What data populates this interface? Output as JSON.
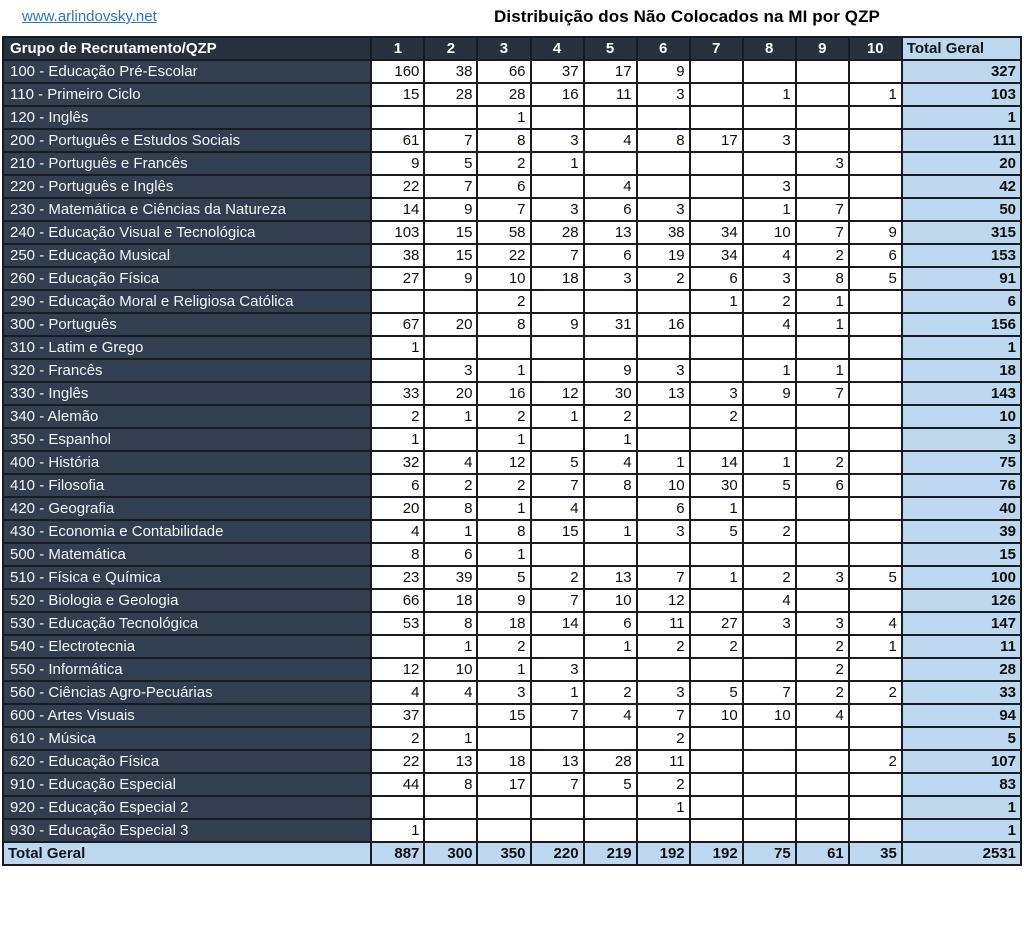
{
  "page": {
    "link_text": "www.arlindovsky.net",
    "title": "Distribuição dos Não Colocados na MI por QZP"
  },
  "colors": {
    "header_bg": "#28323f",
    "label_bg": "#333f50",
    "total_bg": "#bdd7ee",
    "link": "#2e75b6",
    "border": "#181c22"
  },
  "chart_data": {
    "type": "table",
    "title": "Distribuição dos Não Colocados na MI por QZP",
    "header": {
      "group_label": "Grupo de Recrutamento/QZP",
      "qzp_labels": [
        "1",
        "2",
        "3",
        "4",
        "5",
        "6",
        "7",
        "8",
        "9",
        "10"
      ],
      "total_label": "Total Geral"
    },
    "rows": [
      {
        "label": "100 - Educação Pré-Escolar",
        "values": [
          160,
          38,
          66,
          37,
          17,
          9,
          null,
          null,
          null,
          null
        ],
        "total": 327
      },
      {
        "label": "110 - Primeiro Ciclo",
        "values": [
          15,
          28,
          28,
          16,
          11,
          3,
          null,
          1,
          null,
          1
        ],
        "total": 103
      },
      {
        "label": "120 - Inglês",
        "values": [
          null,
          null,
          1,
          null,
          null,
          null,
          null,
          null,
          null,
          null
        ],
        "total": 1
      },
      {
        "label": "200 - Português e Estudos Sociais",
        "values": [
          61,
          7,
          8,
          3,
          4,
          8,
          17,
          3,
          null,
          null
        ],
        "total": 111
      },
      {
        "label": "210 - Português e Francês",
        "values": [
          9,
          5,
          2,
          1,
          null,
          null,
          null,
          null,
          3,
          null
        ],
        "total": 20
      },
      {
        "label": "220 - Português e Inglês",
        "values": [
          22,
          7,
          6,
          null,
          4,
          null,
          null,
          3,
          null,
          null
        ],
        "total": 42
      },
      {
        "label": "230 - Matemática e Ciências da Natureza",
        "values": [
          14,
          9,
          7,
          3,
          6,
          3,
          null,
          1,
          7,
          null
        ],
        "total": 50
      },
      {
        "label": "240 - Educação Visual e Tecnológica",
        "values": [
          103,
          15,
          58,
          28,
          13,
          38,
          34,
          10,
          7,
          9
        ],
        "total": 315
      },
      {
        "label": "250 - Educação Musical",
        "values": [
          38,
          15,
          22,
          7,
          6,
          19,
          34,
          4,
          2,
          6
        ],
        "total": 153
      },
      {
        "label": "260 - Educação Física",
        "values": [
          27,
          9,
          10,
          18,
          3,
          2,
          6,
          3,
          8,
          5
        ],
        "total": 91
      },
      {
        "label": "290 - Educação Moral e Religiosa Católica",
        "values": [
          null,
          null,
          2,
          null,
          null,
          null,
          1,
          2,
          1,
          null
        ],
        "total": 6
      },
      {
        "label": "300 - Português",
        "values": [
          67,
          20,
          8,
          9,
          31,
          16,
          null,
          4,
          1,
          null
        ],
        "total": 156
      },
      {
        "label": "310 - Latim e Grego",
        "values": [
          1,
          null,
          null,
          null,
          null,
          null,
          null,
          null,
          null,
          null
        ],
        "total": 1
      },
      {
        "label": "320 - Francês",
        "values": [
          null,
          3,
          1,
          null,
          9,
          3,
          null,
          1,
          1,
          null
        ],
        "total": 18
      },
      {
        "label": "330 - Inglês",
        "values": [
          33,
          20,
          16,
          12,
          30,
          13,
          3,
          9,
          7,
          null
        ],
        "total": 143
      },
      {
        "label": "340 - Alemão",
        "values": [
          2,
          1,
          2,
          1,
          2,
          null,
          2,
          null,
          null,
          null
        ],
        "total": 10
      },
      {
        "label": "350 - Espanhol",
        "values": [
          1,
          null,
          1,
          null,
          1,
          null,
          null,
          null,
          null,
          null
        ],
        "total": 3
      },
      {
        "label": "400 - História",
        "values": [
          32,
          4,
          12,
          5,
          4,
          1,
          14,
          1,
          2,
          null
        ],
        "total": 75
      },
      {
        "label": "410 - Filosofia",
        "values": [
          6,
          2,
          2,
          7,
          8,
          10,
          30,
          5,
          6,
          null
        ],
        "total": 76
      },
      {
        "label": "420 - Geografia",
        "values": [
          20,
          8,
          1,
          4,
          null,
          6,
          1,
          null,
          null,
          null
        ],
        "total": 40
      },
      {
        "label": "430 - Economia  e Contabilidade",
        "values": [
          4,
          1,
          8,
          15,
          1,
          3,
          5,
          2,
          null,
          null
        ],
        "total": 39
      },
      {
        "label": "500 - Matemática",
        "values": [
          8,
          6,
          1,
          null,
          null,
          null,
          null,
          null,
          null,
          null
        ],
        "total": 15
      },
      {
        "label": "510 - Física e Química",
        "values": [
          23,
          39,
          5,
          2,
          13,
          7,
          1,
          2,
          3,
          5
        ],
        "total": 100
      },
      {
        "label": "520 - Biologia e Geologia",
        "values": [
          66,
          18,
          9,
          7,
          10,
          12,
          null,
          4,
          null,
          null
        ],
        "total": 126
      },
      {
        "label": "530 - Educação Tecnológica",
        "values": [
          53,
          8,
          18,
          14,
          6,
          11,
          27,
          3,
          3,
          4
        ],
        "total": 147
      },
      {
        "label": "540 - Electrotecnia",
        "values": [
          null,
          1,
          2,
          null,
          1,
          2,
          2,
          null,
          2,
          1
        ],
        "total": 11
      },
      {
        "label": "550 - Informática",
        "values": [
          12,
          10,
          1,
          3,
          null,
          null,
          null,
          null,
          2,
          null
        ],
        "total": 28
      },
      {
        "label": "560 - Ciências Agro-Pecuárias",
        "values": [
          4,
          4,
          3,
          1,
          2,
          3,
          5,
          7,
          2,
          2
        ],
        "total": 33
      },
      {
        "label": "600 - Artes Visuais",
        "values": [
          37,
          null,
          15,
          7,
          4,
          7,
          10,
          10,
          4,
          null
        ],
        "total": 94
      },
      {
        "label": "610 - Música",
        "values": [
          2,
          1,
          null,
          null,
          null,
          2,
          null,
          null,
          null,
          null
        ],
        "total": 5
      },
      {
        "label": "620 - Educação Física",
        "values": [
          22,
          13,
          18,
          13,
          28,
          11,
          null,
          null,
          null,
          2
        ],
        "total": 107
      },
      {
        "label": "910 - Educação Especial",
        "values": [
          44,
          8,
          17,
          7,
          5,
          2,
          null,
          null,
          null,
          null
        ],
        "total": 83
      },
      {
        "label": "920 - Educação Especial 2",
        "values": [
          null,
          null,
          null,
          null,
          null,
          1,
          null,
          null,
          null,
          null
        ],
        "total": 1
      },
      {
        "label": "930 - Educação Especial 3",
        "values": [
          1,
          null,
          null,
          null,
          null,
          null,
          null,
          null,
          null,
          null
        ],
        "total": 1
      }
    ],
    "total_row": {
      "label": "Total Geral",
      "values": [
        887,
        300,
        350,
        220,
        219,
        192,
        192,
        75,
        61,
        35
      ],
      "total": 2531
    }
  }
}
